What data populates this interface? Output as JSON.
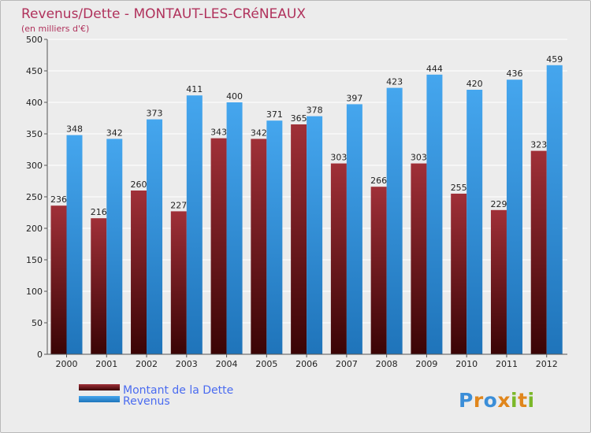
{
  "chart_data": {
    "type": "bar",
    "title": "Revenus/Dette - MONTAUT-LES-CRéNEAUX",
    "subtitle": "(en milliers d'€)",
    "categories": [
      "2000",
      "2001",
      "2002",
      "2003",
      "2004",
      "2005",
      "2006",
      "2007",
      "2008",
      "2009",
      "2010",
      "2011",
      "2012"
    ],
    "series": [
      {
        "name": "Montant de la Dette",
        "color": "#7a1a1f",
        "values": [
          236,
          216,
          260,
          227,
          343,
          342,
          365,
          303,
          266,
          303,
          255,
          229,
          323
        ]
      },
      {
        "name": "Revenus",
        "color": "#3d96db",
        "values": [
          348,
          342,
          373,
          411,
          400,
          371,
          378,
          397,
          423,
          444,
          420,
          436,
          459
        ]
      }
    ],
    "ylim": [
      0,
      500
    ],
    "yticks": [
      0,
      50,
      100,
      150,
      200,
      250,
      300,
      350,
      400,
      450,
      500
    ],
    "xlabel": "",
    "ylabel": "",
    "grid": true,
    "legend": "bottom-left"
  },
  "colors": {
    "title": "#b0325c",
    "legend_text": "#4a6bf0",
    "axis_text": "#222222"
  },
  "watermark": "Proxiti"
}
